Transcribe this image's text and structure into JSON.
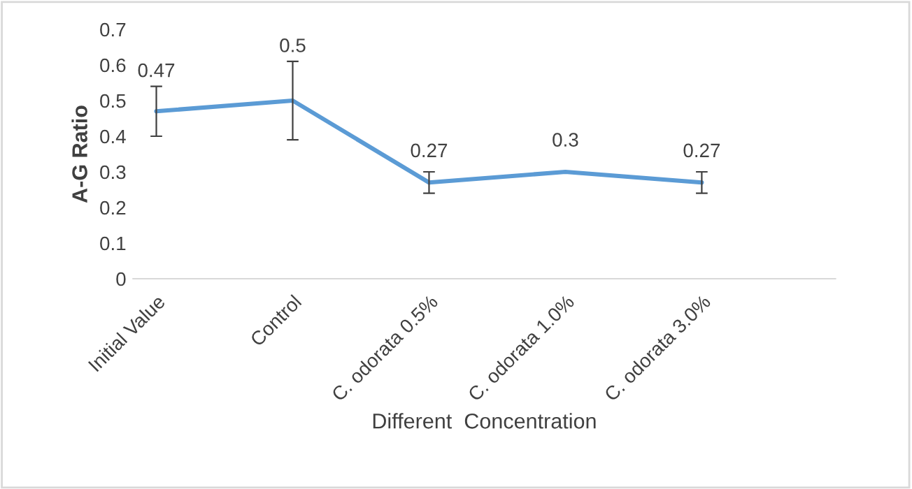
{
  "chart_data": {
    "type": "line",
    "xlabel": "Different  Concentration",
    "ylabel": "A-G Ratio",
    "categories": [
      "Initial Value",
      "Control",
      "C. odorata 0.5%",
      "C. odorata 1.0%",
      "C. odorata 3.0%"
    ],
    "series": [
      {
        "color": "#5b9bd5",
        "values": [
          0.47,
          0.5,
          0.27,
          0.3,
          0.27
        ],
        "errors": [
          0.07,
          0.11,
          0.03,
          null,
          0.03
        ]
      }
    ],
    "data_labels": true,
    "ylim": [
      0,
      0.7
    ],
    "yticks": [
      0,
      0.1,
      0.2,
      0.3,
      0.4,
      0.5,
      0.6,
      0.7
    ],
    "grid": false,
    "legend": false,
    "marker": "none",
    "line_style": "solid"
  }
}
